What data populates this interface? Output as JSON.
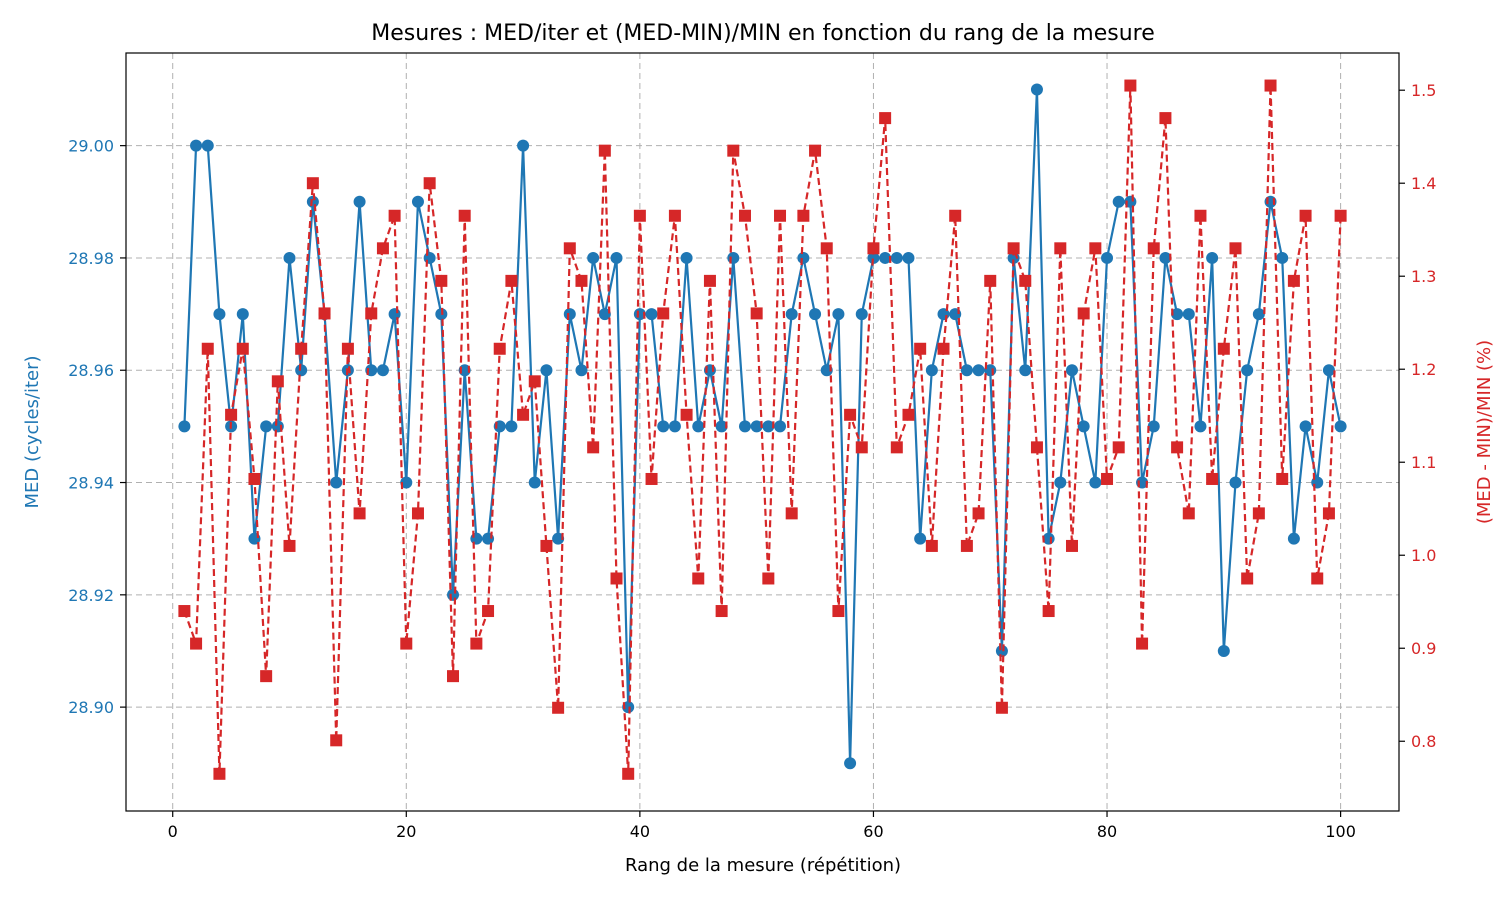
{
  "chart_data": {
    "type": "line",
    "title": "Mesures : MED/iter et (MED-MIN)/MIN en fonction du rang de la mesure",
    "xlabel": "Rang de la mesure (répétition)",
    "ylabel_left": "MED (cycles/iter)",
    "ylabel_right": "(MED - MIN)/MIN (%)",
    "xlim": [
      -4,
      105
    ],
    "ylim_left": [
      28.8815,
      29.0165
    ],
    "ylim_right": [
      0.725,
      1.54
    ],
    "x_ticks": [
      0,
      20,
      40,
      60,
      80,
      100
    ],
    "y_left_ticks": [
      28.9,
      28.92,
      28.94,
      28.96,
      28.98,
      29.0
    ],
    "y_right_ticks": [
      0.8,
      0.9,
      1.0,
      1.1,
      1.2,
      1.3,
      1.4,
      1.5
    ],
    "grid": true,
    "x": [
      1,
      2,
      3,
      4,
      5,
      6,
      7,
      8,
      9,
      10,
      11,
      12,
      13,
      14,
      15,
      16,
      17,
      18,
      19,
      20,
      21,
      22,
      23,
      24,
      25,
      26,
      27,
      28,
      29,
      30,
      31,
      32,
      33,
      34,
      35,
      36,
      37,
      38,
      39,
      40,
      41,
      42,
      43,
      44,
      45,
      46,
      47,
      48,
      49,
      50,
      51,
      52,
      53,
      54,
      55,
      56,
      57,
      58,
      59,
      60,
      61,
      62,
      63,
      64,
      65,
      66,
      67,
      68,
      69,
      70,
      71,
      72,
      73,
      74,
      75,
      76,
      77,
      78,
      79,
      80,
      81,
      82,
      83,
      84,
      85,
      86,
      87,
      88,
      89,
      90,
      91,
      92,
      93,
      94,
      95,
      96,
      97,
      98,
      99,
      100
    ],
    "series": [
      {
        "axis": "left",
        "color": "#1f77b4",
        "marker": "circle",
        "linestyle": "solid",
        "values": [
          28.95,
          29.0,
          29.0,
          28.97,
          28.95,
          28.97,
          28.93,
          28.95,
          28.95,
          28.98,
          28.96,
          28.99,
          28.97,
          28.94,
          28.96,
          28.99,
          28.96,
          28.96,
          28.97,
          28.94,
          28.99,
          28.98,
          28.97,
          28.92,
          28.96,
          28.93,
          28.93,
          28.95,
          28.95,
          29.0,
          28.94,
          28.96,
          28.93,
          28.97,
          28.96,
          28.98,
          28.97,
          28.98,
          28.9,
          28.97,
          28.97,
          28.95,
          28.95,
          28.98,
          28.95,
          28.96,
          28.95,
          28.98,
          28.95,
          28.95,
          28.95,
          28.95,
          28.97,
          28.98,
          28.97,
          28.96,
          28.97,
          28.89,
          28.97,
          28.98,
          28.98,
          28.98,
          28.98,
          28.93,
          28.96,
          28.97,
          28.97,
          28.96,
          28.96,
          28.96,
          28.91,
          28.98,
          28.96,
          29.01,
          28.93,
          28.94,
          28.96,
          28.95,
          28.94,
          28.98,
          28.99,
          28.99,
          28.94,
          28.95,
          28.98,
          28.97,
          28.97,
          28.95,
          28.98,
          28.91,
          28.94,
          28.96,
          28.97,
          28.99,
          28.98,
          28.93,
          28.95,
          28.94,
          28.96,
          28.95
        ]
      },
      {
        "axis": "right",
        "color": "#d62728",
        "marker": "square",
        "linestyle": "dashed",
        "values": [
          0.94,
          0.905,
          1.222,
          0.765,
          1.151,
          1.222,
          1.082,
          0.87,
          1.187,
          1.01,
          1.222,
          1.4,
          1.26,
          0.801,
          1.222,
          1.045,
          1.26,
          1.33,
          1.365,
          0.905,
          1.045,
          1.4,
          1.295,
          0.87,
          1.365,
          0.905,
          0.94,
          1.222,
          1.295,
          1.151,
          1.187,
          1.01,
          0.836,
          1.33,
          1.295,
          1.116,
          1.435,
          0.975,
          0.765,
          1.365,
          1.082,
          1.26,
          1.365,
          1.151,
          0.975,
          1.295,
          0.94,
          1.435,
          1.365,
          1.26,
          0.975,
          1.365,
          1.045,
          1.365,
          1.435,
          1.33,
          0.94,
          1.151,
          1.116,
          1.33,
          1.47,
          1.116,
          1.151,
          1.222,
          1.01,
          1.222,
          1.365,
          1.01,
          1.045,
          1.295,
          0.836,
          1.33,
          1.295,
          1.116,
          0.94,
          1.33,
          1.01,
          1.26,
          1.33,
          1.082,
          1.116,
          1.505,
          0.905,
          1.33,
          1.47,
          1.116,
          1.045,
          1.365,
          1.082,
          1.222,
          1.33,
          0.975,
          1.045,
          1.505,
          1.082,
          1.295,
          1.365,
          0.975,
          1.045,
          1.365
        ]
      }
    ]
  }
}
